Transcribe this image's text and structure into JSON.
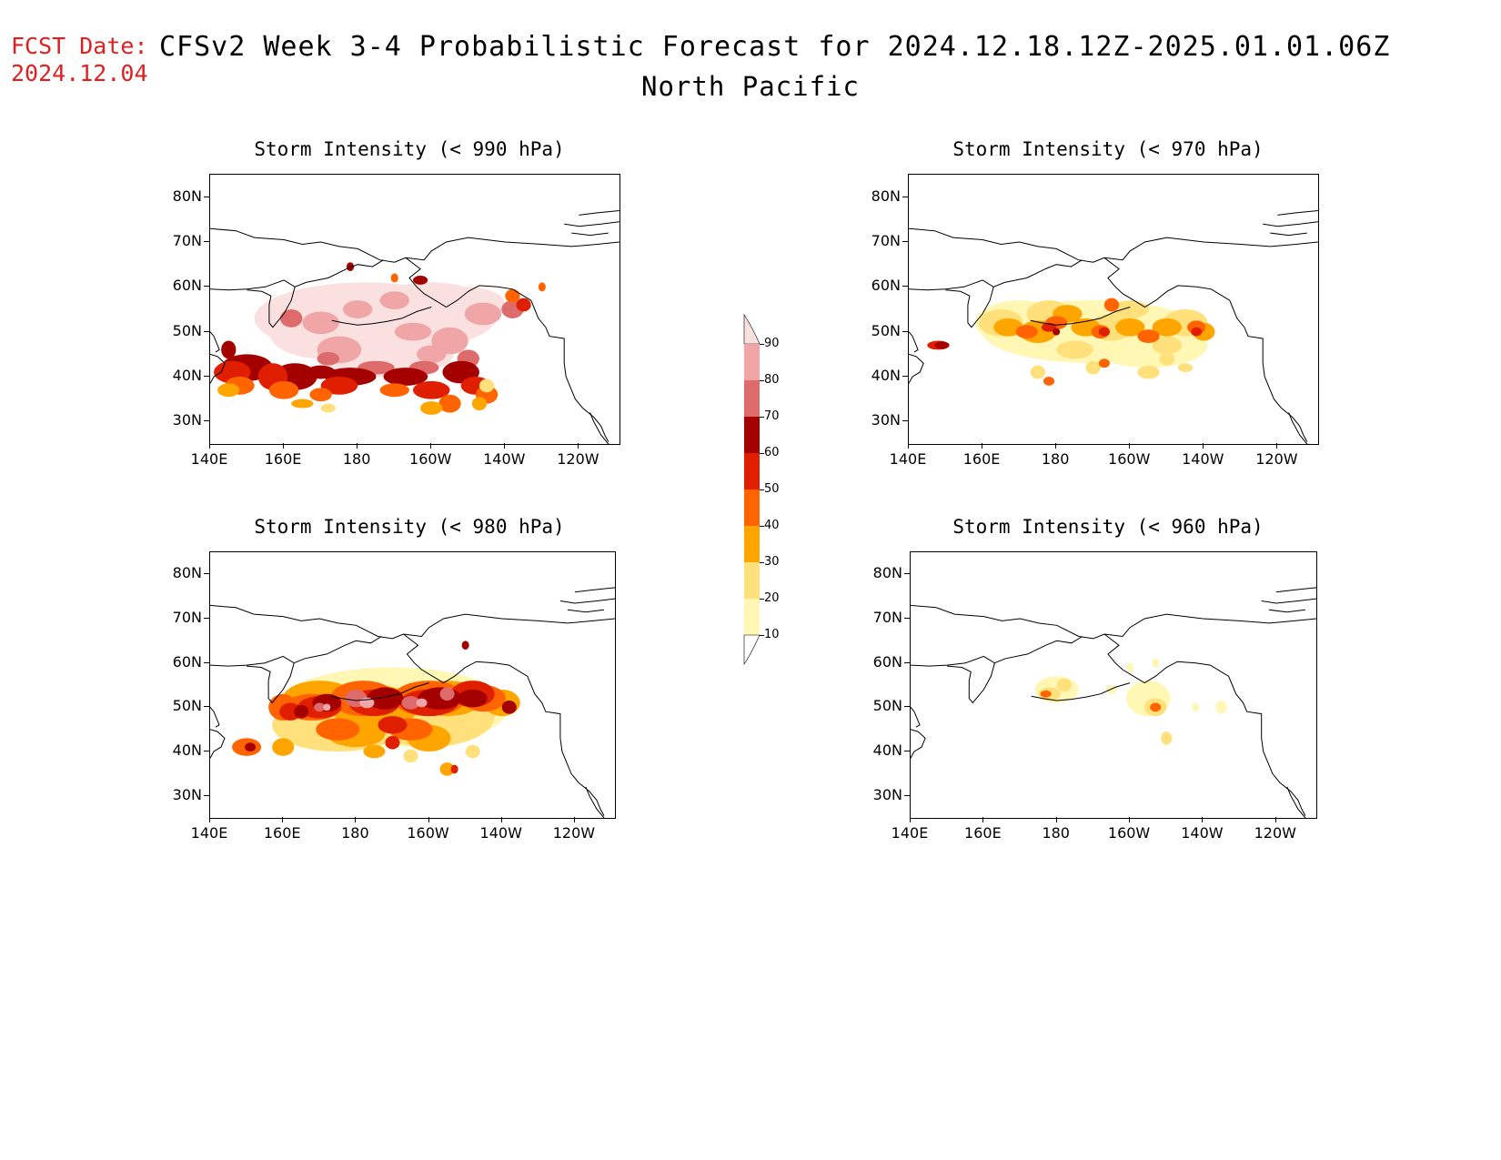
{
  "header": {
    "fcst_label": "FCST Date:",
    "fcst_date": "2024.12.04",
    "title": "CFSv2 Week 3-4 Probabilistic Forecast for 2024.12.18.12Z-2025.01.01.06Z",
    "subtitle": "North Pacific"
  },
  "axes": {
    "lat_labels": [
      "80N",
      "70N",
      "60N",
      "50N",
      "40N",
      "30N"
    ],
    "lon_labels": [
      "140E",
      "160E",
      "180",
      "160W",
      "140W",
      "120W"
    ]
  },
  "panels": [
    {
      "id": "p990",
      "title": "Storm Intensity (< 990 hPa)",
      "intensity": "very-high"
    },
    {
      "id": "p970",
      "title": "Storm Intensity (< 970 hPa)",
      "intensity": "medium"
    },
    {
      "id": "p980",
      "title": "Storm Intensity (< 980 hPa)",
      "intensity": "high"
    },
    {
      "id": "p960",
      "title": "Storm Intensity (< 960 hPa)",
      "intensity": "low"
    }
  ],
  "colorbar": {
    "levels": [
      "90",
      "80",
      "70",
      "60",
      "50",
      "40",
      "30",
      "20",
      "10"
    ],
    "colors": [
      "#fbe0e0",
      "#f0a6a6",
      "#dd6b6b",
      "#a50000",
      "#e01f00",
      "#ff6400",
      "#ffa500",
      "#ffe07a",
      "#fff7b3"
    ]
  }
}
